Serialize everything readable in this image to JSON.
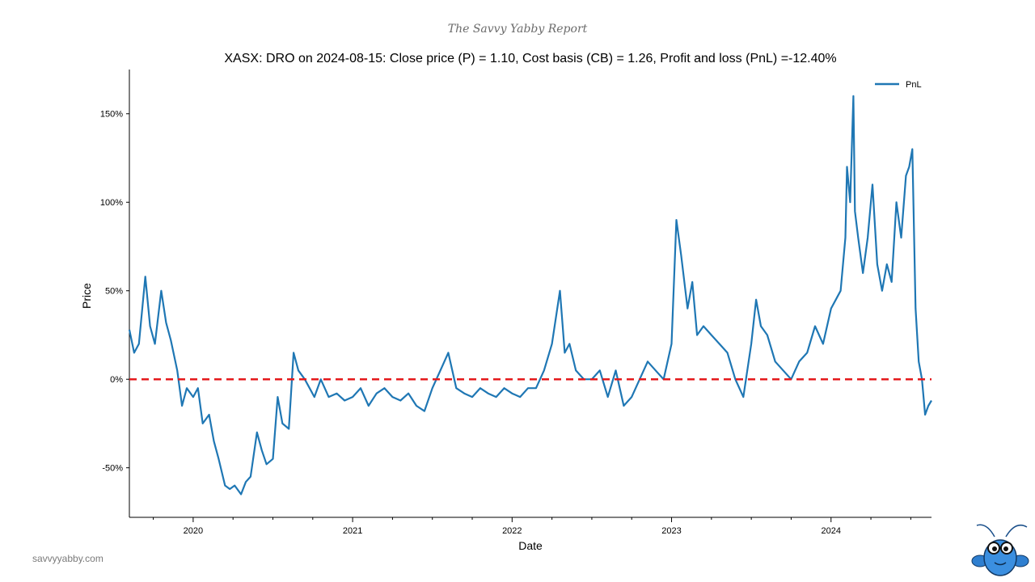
{
  "brand": "The Savvy Yabby Report",
  "site": "savvyyabby.com",
  "mascot_icon": "yabby-mascot-icon",
  "colors": {
    "line": "#1f77b4",
    "zero": "#e41a1c"
  },
  "chart_data": {
    "type": "line",
    "title": "XASX: DRO on 2024-08-15: Close price (P) = 1.10, Cost basis (CB) = 1.26, Profit and loss (PnL) =-12.40%",
    "xlabel": "Date",
    "ylabel": "Price",
    "legend": [
      "PnL"
    ],
    "legend_position": "top-right",
    "xlim": [
      2019.6,
      2024.63
    ],
    "ylim": [
      -78,
      175
    ],
    "x_ticks": [
      2020,
      2021,
      2022,
      2023,
      2024
    ],
    "x_tick_labels": [
      "2020",
      "2021",
      "2022",
      "2023",
      "2024"
    ],
    "y_ticks": [
      -50,
      0,
      50,
      100,
      150
    ],
    "y_tick_labels": [
      "-50%",
      "0%",
      "50%",
      "100%",
      "150%"
    ],
    "reference_line": {
      "y": 0,
      "style": "dashed"
    },
    "series": [
      {
        "name": "PnL",
        "x": [
          2019.6,
          2019.63,
          2019.66,
          2019.7,
          2019.73,
          2019.76,
          2019.8,
          2019.83,
          2019.86,
          2019.9,
          2019.93,
          2019.96,
          2020.0,
          2020.03,
          2020.06,
          2020.1,
          2020.13,
          2020.16,
          2020.2,
          2020.23,
          2020.26,
          2020.3,
          2020.33,
          2020.36,
          2020.4,
          2020.43,
          2020.46,
          2020.5,
          2020.53,
          2020.56,
          2020.6,
          2020.63,
          2020.66,
          2020.7,
          2020.73,
          2020.76,
          2020.8,
          2020.85,
          2020.9,
          2020.95,
          2021.0,
          2021.05,
          2021.1,
          2021.15,
          2021.2,
          2021.25,
          2021.3,
          2021.35,
          2021.4,
          2021.45,
          2021.5,
          2021.55,
          2021.6,
          2021.65,
          2021.7,
          2021.75,
          2021.8,
          2021.85,
          2021.9,
          2021.95,
          2022.0,
          2022.05,
          2022.1,
          2022.15,
          2022.2,
          2022.25,
          2022.3,
          2022.33,
          2022.36,
          2022.4,
          2022.45,
          2022.5,
          2022.55,
          2022.6,
          2022.65,
          2022.7,
          2022.75,
          2022.8,
          2022.85,
          2022.9,
          2022.95,
          2023.0,
          2023.03,
          2023.06,
          2023.1,
          2023.13,
          2023.16,
          2023.2,
          2023.25,
          2023.3,
          2023.35,
          2023.4,
          2023.45,
          2023.5,
          2023.53,
          2023.56,
          2023.6,
          2023.65,
          2023.7,
          2023.75,
          2023.8,
          2023.85,
          2023.9,
          2023.95,
          2024.0,
          2024.03,
          2024.06,
          2024.09,
          2024.1,
          2024.12,
          2024.14,
          2024.15,
          2024.17,
          2024.2,
          2024.23,
          2024.26,
          2024.29,
          2024.32,
          2024.35,
          2024.38,
          2024.41,
          2024.44,
          2024.47,
          2024.49,
          2024.51,
          2024.53,
          2024.55,
          2024.57,
          2024.59,
          2024.61,
          2024.63
        ],
        "y": [
          28,
          15,
          20,
          58,
          30,
          20,
          50,
          32,
          22,
          5,
          -15,
          -5,
          -10,
          -5,
          -25,
          -20,
          -35,
          -45,
          -60,
          -62,
          -60,
          -65,
          -58,
          -55,
          -30,
          -40,
          -48,
          -45,
          -10,
          -25,
          -28,
          15,
          5,
          0,
          -5,
          -10,
          0,
          -10,
          -8,
          -12,
          -10,
          -5,
          -15,
          -8,
          -5,
          -10,
          -12,
          -8,
          -15,
          -18,
          -5,
          5,
          15,
          -5,
          -8,
          -10,
          -5,
          -8,
          -10,
          -5,
          -8,
          -10,
          -5,
          -5,
          5,
          20,
          50,
          15,
          20,
          5,
          0,
          0,
          5,
          -10,
          5,
          -15,
          -10,
          0,
          10,
          5,
          0,
          20,
          90,
          70,
          40,
          55,
          25,
          30,
          25,
          20,
          15,
          0,
          -10,
          20,
          45,
          30,
          25,
          10,
          5,
          0,
          10,
          15,
          30,
          20,
          40,
          45,
          50,
          80,
          120,
          100,
          160,
          95,
          80,
          60,
          80,
          110,
          65,
          50,
          65,
          55,
          100,
          80,
          115,
          120,
          130,
          40,
          10,
          0,
          -20,
          -15,
          -12
        ]
      }
    ]
  }
}
